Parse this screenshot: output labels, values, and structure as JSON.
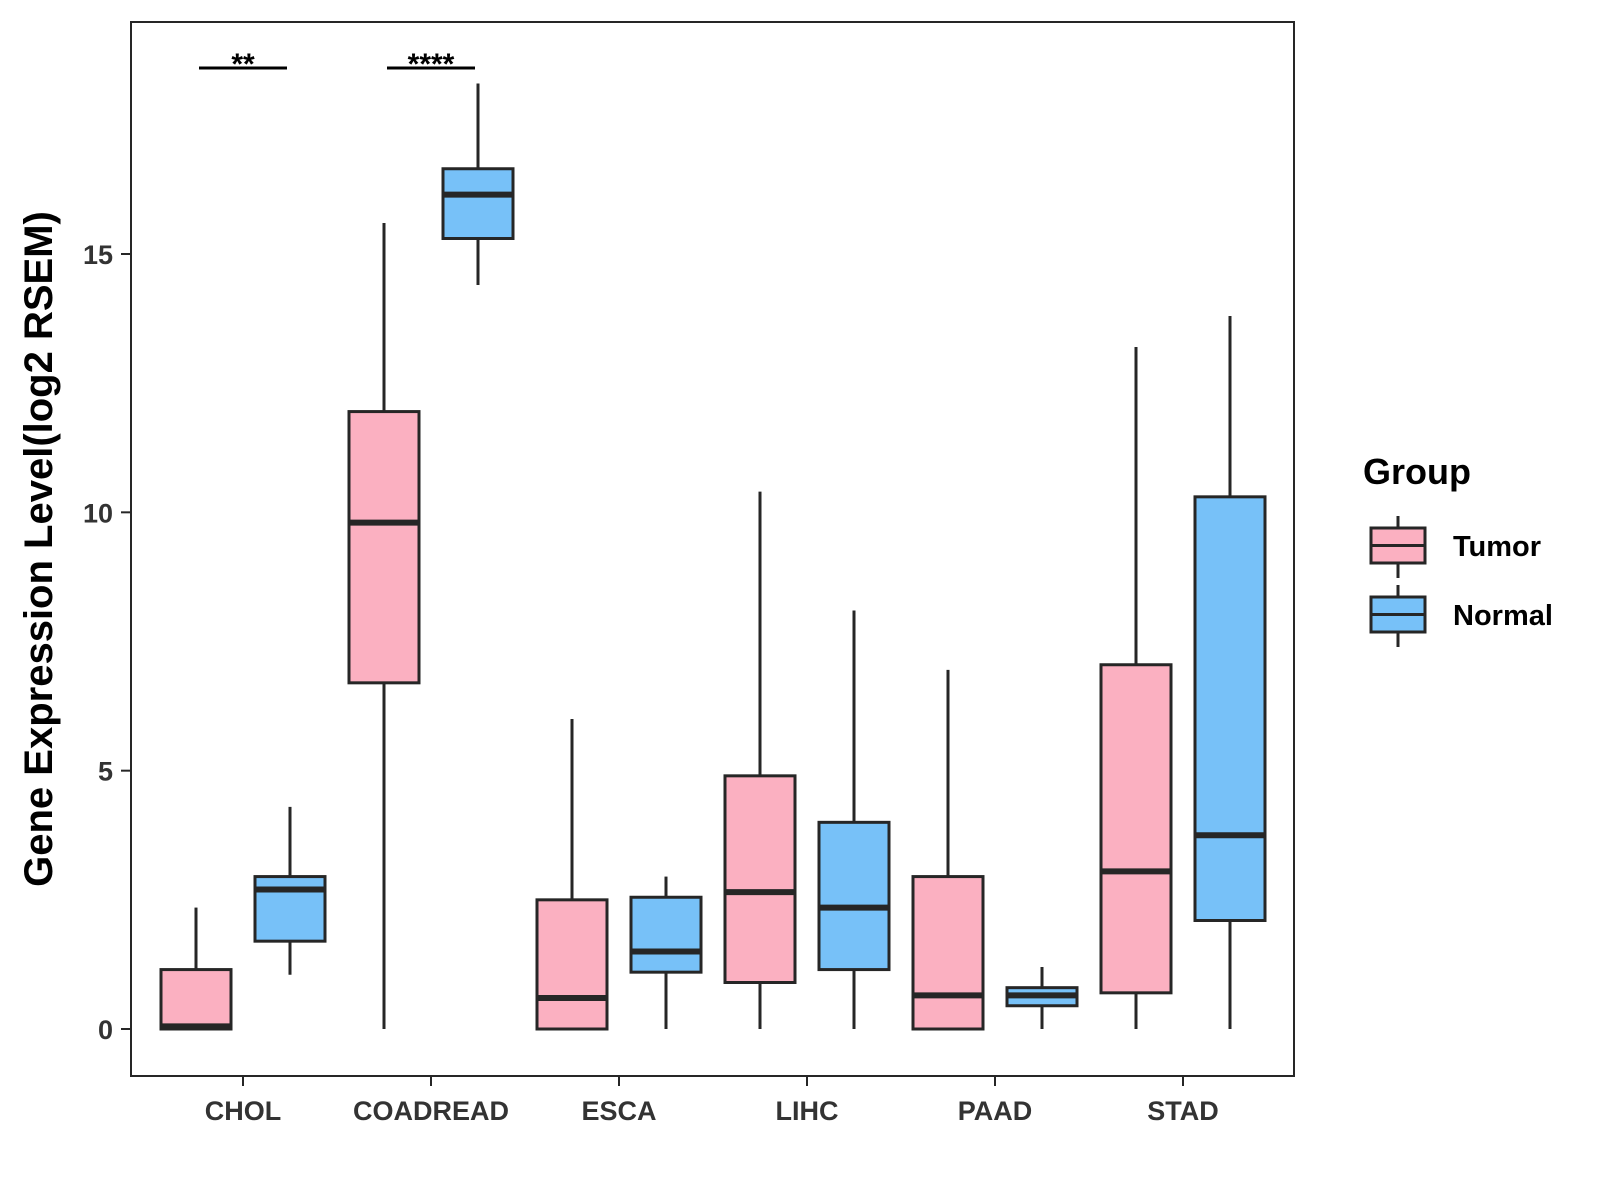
{
  "chart_data": {
    "type": "boxplot",
    "title": "",
    "xlabel": "",
    "ylabel": "Gene Expression Level(log2 RSEM)",
    "ylim": [
      -0.9,
      19.5
    ],
    "yticks": [
      0,
      5,
      10,
      15
    ],
    "grid": false,
    "legend": {
      "title": "Group",
      "position": "right",
      "entries": [
        "Tumor",
        "Normal"
      ]
    },
    "colors": {
      "Tumor": "#FBB0C1",
      "Normal": "#77C1F8",
      "outline": "#262626"
    },
    "categories": [
      "CHOL",
      "COADREAD",
      "ESCA",
      "LIHC",
      "PAAD",
      "STAD"
    ],
    "series": [
      {
        "name": "Tumor",
        "boxes": [
          {
            "min": 0.0,
            "q1": 0.0,
            "median": 0.05,
            "q3": 1.15,
            "max": 2.35
          },
          {
            "min": 0.0,
            "q1": 6.7,
            "median": 9.8,
            "q3": 11.95,
            "max": 15.6
          },
          {
            "min": 0.0,
            "q1": 0.0,
            "median": 0.6,
            "q3": 2.5,
            "max": 6.0
          },
          {
            "min": 0.0,
            "q1": 0.9,
            "median": 2.65,
            "q3": 4.9,
            "max": 10.4
          },
          {
            "min": 0.0,
            "q1": 0.0,
            "median": 0.65,
            "q3": 2.95,
            "max": 6.95
          },
          {
            "min": 0.0,
            "q1": 0.7,
            "median": 3.05,
            "q3": 7.05,
            "max": 13.2
          }
        ]
      },
      {
        "name": "Normal",
        "boxes": [
          {
            "min": 1.05,
            "q1": 1.7,
            "median": 2.7,
            "q3": 2.95,
            "max": 4.3
          },
          {
            "min": 14.4,
            "q1": 15.3,
            "median": 16.15,
            "q3": 16.65,
            "max": 18.3
          },
          {
            "min": 0.0,
            "q1": 1.1,
            "median": 1.5,
            "q3": 2.55,
            "max": 2.95
          },
          {
            "min": 0.0,
            "q1": 1.15,
            "median": 2.35,
            "q3": 4.0,
            "max": 8.1
          },
          {
            "min": 0.0,
            "q1": 0.45,
            "median": 0.65,
            "q3": 0.8,
            "max": 1.2
          },
          {
            "min": 0.0,
            "q1": 2.1,
            "median": 3.75,
            "q3": 10.3,
            "max": 13.8
          }
        ]
      }
    ],
    "annotations": [
      {
        "category": "CHOL",
        "text": "**",
        "y": 18.6
      },
      {
        "category": "COADREAD",
        "text": "****",
        "y": 18.6
      }
    ]
  }
}
